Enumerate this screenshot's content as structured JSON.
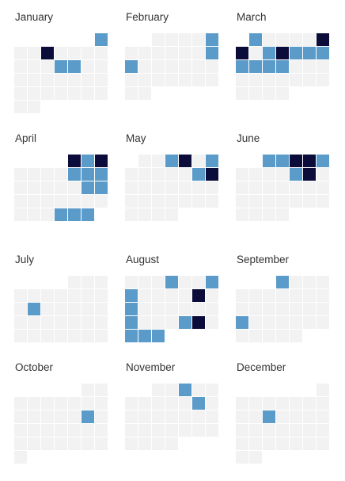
{
  "calendar": {
    "colors": {
      "empty": "#f2f2f2",
      "light": "#5b9bc9",
      "dark": "#0b0c3a"
    },
    "months": [
      {
        "label": "January",
        "days": 31,
        "offset": 6,
        "marked": {
          "1": "light",
          "4": "dark",
          "12": "light",
          "13": "light"
        }
      },
      {
        "label": "February",
        "days": 28,
        "offset": 2,
        "marked": {
          "5": "light",
          "12": "light",
          "13": "light"
        }
      },
      {
        "label": "March",
        "days": 31,
        "offset": 1,
        "marked": {
          "1": "light",
          "6": "dark",
          "7": "dark",
          "9": "light",
          "10": "dark",
          "11": "light",
          "12": "light",
          "13": "light",
          "14": "light",
          "15": "light",
          "16": "light",
          "17": "light"
        }
      },
      {
        "label": "April",
        "days": 30,
        "offset": 4,
        "marked": {
          "1": "dark",
          "2": "light",
          "3": "dark",
          "8": "light",
          "9": "light",
          "10": "light",
          "16": "light",
          "17": "light",
          "28": "light",
          "29": "light",
          "30": "light"
        }
      },
      {
        "label": "May",
        "days": 31,
        "offset": 1,
        "marked": {
          "3": "light",
          "4": "dark",
          "6": "light",
          "12": "light",
          "13": "dark"
        }
      },
      {
        "label": "June",
        "days": 30,
        "offset": 2,
        "marked": {
          "1": "light",
          "2": "light",
          "3": "dark",
          "4": "dark",
          "5": "light",
          "10": "light",
          "11": "dark"
        }
      },
      {
        "label": "July",
        "days": 31,
        "offset": 4,
        "marked": {
          "12": "light"
        }
      },
      {
        "label": "August",
        "days": 31,
        "offset": 0,
        "marked": {
          "4": "light",
          "7": "light",
          "8": "light",
          "13": "dark",
          "15": "light",
          "22": "light",
          "26": "light",
          "27": "dark",
          "29": "light",
          "30": "light",
          "31": "light"
        }
      },
      {
        "label": "September",
        "days": 30,
        "offset": 3,
        "marked": {
          "1": "light",
          "19": "light"
        }
      },
      {
        "label": "October",
        "days": 31,
        "offset": 5,
        "marked": {
          "15": "light"
        }
      },
      {
        "label": "November",
        "days": 30,
        "offset": 2,
        "marked": {
          "3": "light",
          "11": "light"
        }
      },
      {
        "label": "December",
        "days": 31,
        "offset": 6,
        "marked": {
          "11": "light"
        }
      }
    ]
  }
}
